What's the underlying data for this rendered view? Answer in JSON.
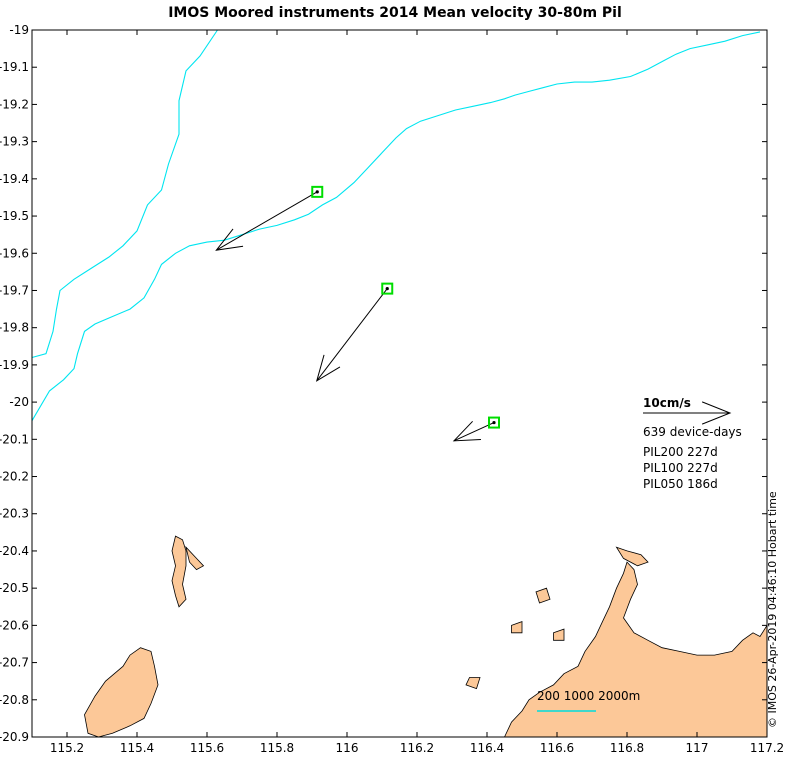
{
  "title": "IMOS Moored instruments 2014 Mean velocity 30-80m Pil",
  "credit": "© IMOS 26-Apr-2019 04:46:10 Hobart time",
  "colors": {
    "land": "#fcc898",
    "contour": "#00e5f0",
    "mooring": "#00dd00",
    "scale_bar": "#00dcdc",
    "axis": "#000000"
  },
  "chart_data": {
    "type": "map",
    "xlim": [
      115.1,
      117.2
    ],
    "ylim": [
      -20.9,
      -19.0
    ],
    "x_ticks": [
      {
        "value": 115.2,
        "label": "115.2"
      },
      {
        "value": 115.4,
        "label": "115.4"
      },
      {
        "value": 115.6,
        "label": "115.6"
      },
      {
        "value": 115.8,
        "label": "115.8"
      },
      {
        "value": 116.0,
        "label": "116"
      },
      {
        "value": 116.2,
        "label": "116.2"
      },
      {
        "value": 116.4,
        "label": "116.4"
      },
      {
        "value": 116.6,
        "label": "116.6"
      },
      {
        "value": 116.8,
        "label": "116.8"
      },
      {
        "value": 117.0,
        "label": "117"
      },
      {
        "value": 117.2,
        "label": "117.2"
      }
    ],
    "y_ticks": [
      {
        "value": -19.0,
        "label": "-19"
      },
      {
        "value": -19.1,
        "label": "-19.1"
      },
      {
        "value": -19.2,
        "label": "-19.2"
      },
      {
        "value": -19.3,
        "label": "-19.3"
      },
      {
        "value": -19.4,
        "label": "-19.4"
      },
      {
        "value": -19.5,
        "label": "-19.5"
      },
      {
        "value": -19.6,
        "label": "-19.6"
      },
      {
        "value": -19.7,
        "label": "-19.7"
      },
      {
        "value": -19.8,
        "label": "-19.8"
      },
      {
        "value": -19.9,
        "label": "-19.9"
      },
      {
        "value": -20.0,
        "label": "-20"
      },
      {
        "value": -20.1,
        "label": "-20.1"
      },
      {
        "value": -20.2,
        "label": "-20.2"
      },
      {
        "value": -20.3,
        "label": "-20.3"
      },
      {
        "value": -20.4,
        "label": "-20.4"
      },
      {
        "value": -20.5,
        "label": "-20.5"
      },
      {
        "value": -20.6,
        "label": "-20.6"
      },
      {
        "value": -20.7,
        "label": "-20.7"
      },
      {
        "value": -20.8,
        "label": "-20.8"
      },
      {
        "value": -20.9,
        "label": "-20.9"
      }
    ],
    "moorings": [
      {
        "lon": 115.915,
        "lat": -19.435,
        "u": -11.6,
        "v": -6.7
      },
      {
        "lon": 116.115,
        "lat": -19.695,
        "u": -8.1,
        "v": -10.6
      },
      {
        "lon": 116.42,
        "lat": -20.055,
        "u": -4.6,
        "v": -2.1
      }
    ],
    "contours": [
      [
        [
          115.1,
          -19.88
        ],
        [
          115.14,
          -19.87
        ],
        [
          115.16,
          -19.81
        ],
        [
          115.17,
          -19.75
        ],
        [
          115.18,
          -19.7
        ],
        [
          115.22,
          -19.67
        ],
        [
          115.27,
          -19.64
        ],
        [
          115.32,
          -19.61
        ],
        [
          115.36,
          -19.58
        ],
        [
          115.4,
          -19.54
        ],
        [
          115.43,
          -19.47
        ],
        [
          115.47,
          -19.43
        ],
        [
          115.49,
          -19.36
        ],
        [
          115.52,
          -19.28
        ],
        [
          115.52,
          -19.19
        ],
        [
          115.54,
          -19.11
        ],
        [
          115.58,
          -19.07
        ],
        [
          115.63,
          -19.0
        ]
      ],
      [
        [
          115.1,
          -20.05
        ],
        [
          115.15,
          -19.97
        ],
        [
          115.19,
          -19.94
        ],
        [
          115.22,
          -19.91
        ],
        [
          115.23,
          -19.87
        ],
        [
          115.25,
          -19.81
        ],
        [
          115.28,
          -19.79
        ],
        [
          115.33,
          -19.77
        ],
        [
          115.38,
          -19.75
        ],
        [
          115.42,
          -19.72
        ],
        [
          115.45,
          -19.67
        ],
        [
          115.47,
          -19.63
        ],
        [
          115.51,
          -19.6
        ],
        [
          115.55,
          -19.58
        ],
        [
          115.6,
          -19.57
        ],
        [
          115.65,
          -19.565
        ],
        [
          115.7,
          -19.55
        ],
        [
          115.75,
          -19.535
        ],
        [
          115.8,
          -19.525
        ],
        [
          115.85,
          -19.51
        ],
        [
          115.89,
          -19.495
        ],
        [
          115.93,
          -19.47
        ],
        [
          115.97,
          -19.45
        ],
        [
          116.02,
          -19.41
        ],
        [
          116.06,
          -19.37
        ],
        [
          116.1,
          -19.33
        ],
        [
          116.14,
          -19.29
        ],
        [
          116.17,
          -19.265
        ],
        [
          116.21,
          -19.245
        ],
        [
          116.26,
          -19.23
        ],
        [
          116.31,
          -19.215
        ],
        [
          116.36,
          -19.205
        ],
        [
          116.41,
          -19.195
        ],
        [
          116.45,
          -19.185
        ],
        [
          116.48,
          -19.175
        ],
        [
          116.52,
          -19.165
        ],
        [
          116.56,
          -19.155
        ],
        [
          116.6,
          -19.145
        ],
        [
          116.65,
          -19.14
        ],
        [
          116.7,
          -19.14
        ],
        [
          116.75,
          -19.135
        ],
        [
          116.81,
          -19.125
        ],
        [
          116.86,
          -19.105
        ],
        [
          116.9,
          -19.085
        ],
        [
          116.94,
          -19.065
        ],
        [
          116.98,
          -19.05
        ],
        [
          117.03,
          -19.04
        ],
        [
          117.08,
          -19.03
        ],
        [
          117.13,
          -19.015
        ],
        [
          117.18,
          -19.005
        ]
      ]
    ],
    "land": [
      [
        [
          115.25,
          -20.84
        ],
        [
          115.28,
          -20.79
        ],
        [
          115.31,
          -20.75
        ],
        [
          115.36,
          -20.71
        ],
        [
          115.38,
          -20.68
        ],
        [
          115.41,
          -20.66
        ],
        [
          115.44,
          -20.67
        ],
        [
          115.45,
          -20.71
        ],
        [
          115.46,
          -20.76
        ],
        [
          115.44,
          -20.81
        ],
        [
          115.42,
          -20.85
        ],
        [
          115.38,
          -20.87
        ],
        [
          115.33,
          -20.89
        ],
        [
          115.29,
          -20.9
        ],
        [
          115.26,
          -20.89
        ]
      ],
      [
        [
          115.51,
          -20.36
        ],
        [
          115.53,
          -20.37
        ],
        [
          115.54,
          -20.4
        ],
        [
          115.54,
          -20.44
        ],
        [
          115.53,
          -20.49
        ],
        [
          115.54,
          -20.53
        ],
        [
          115.52,
          -20.55
        ],
        [
          115.51,
          -20.52
        ],
        [
          115.5,
          -20.48
        ],
        [
          115.51,
          -20.44
        ],
        [
          115.5,
          -20.4
        ]
      ],
      [
        [
          115.54,
          -20.39
        ],
        [
          115.57,
          -20.42
        ],
        [
          115.59,
          -20.44
        ],
        [
          115.57,
          -20.45
        ],
        [
          115.55,
          -20.43
        ]
      ],
      [
        [
          116.45,
          -20.9
        ],
        [
          116.47,
          -20.86
        ],
        [
          116.5,
          -20.83
        ],
        [
          116.52,
          -20.8
        ],
        [
          116.55,
          -20.78
        ],
        [
          116.59,
          -20.76
        ],
        [
          116.62,
          -20.73
        ],
        [
          116.66,
          -20.71
        ],
        [
          116.68,
          -20.67
        ],
        [
          116.71,
          -20.63
        ],
        [
          116.73,
          -20.59
        ],
        [
          116.75,
          -20.55
        ],
        [
          116.77,
          -20.5
        ],
        [
          116.79,
          -20.46
        ],
        [
          116.8,
          -20.43
        ],
        [
          116.82,
          -20.45
        ],
        [
          116.83,
          -20.49
        ],
        [
          116.81,
          -20.53
        ],
        [
          116.79,
          -20.58
        ],
        [
          116.82,
          -20.62
        ],
        [
          116.86,
          -20.64
        ],
        [
          116.9,
          -20.66
        ],
        [
          116.95,
          -20.67
        ],
        [
          117.0,
          -20.68
        ],
        [
          117.05,
          -20.68
        ],
        [
          117.1,
          -20.67
        ],
        [
          117.13,
          -20.64
        ],
        [
          117.16,
          -20.62
        ],
        [
          117.18,
          -20.63
        ],
        [
          117.2,
          -20.6
        ],
        [
          117.2,
          -20.9
        ]
      ],
      [
        [
          116.35,
          -20.74
        ],
        [
          116.38,
          -20.74
        ],
        [
          116.37,
          -20.77
        ],
        [
          116.34,
          -20.76
        ]
      ],
      [
        [
          116.59,
          -20.62
        ],
        [
          116.62,
          -20.61
        ],
        [
          116.62,
          -20.64
        ],
        [
          116.59,
          -20.64
        ]
      ],
      [
        [
          116.77,
          -20.39
        ],
        [
          116.8,
          -20.4
        ],
        [
          116.84,
          -20.41
        ],
        [
          116.86,
          -20.43
        ],
        [
          116.83,
          -20.44
        ],
        [
          116.79,
          -20.42
        ]
      ],
      [
        [
          116.54,
          -20.51
        ],
        [
          116.57,
          -20.5
        ],
        [
          116.58,
          -20.53
        ],
        [
          116.55,
          -20.54
        ]
      ],
      [
        [
          116.47,
          -20.6
        ],
        [
          116.5,
          -20.59
        ],
        [
          116.5,
          -20.62
        ],
        [
          116.47,
          -20.62
        ]
      ]
    ],
    "legend": {
      "arrow_label": "10cm/s",
      "arrow_u": 10,
      "device_days": "639 device-days",
      "instruments": [
        "PIL200 227d",
        "PIL100 227d",
        "PIL050 186d"
      ]
    },
    "depth_scale": {
      "label": "200 1000 2000m"
    }
  }
}
